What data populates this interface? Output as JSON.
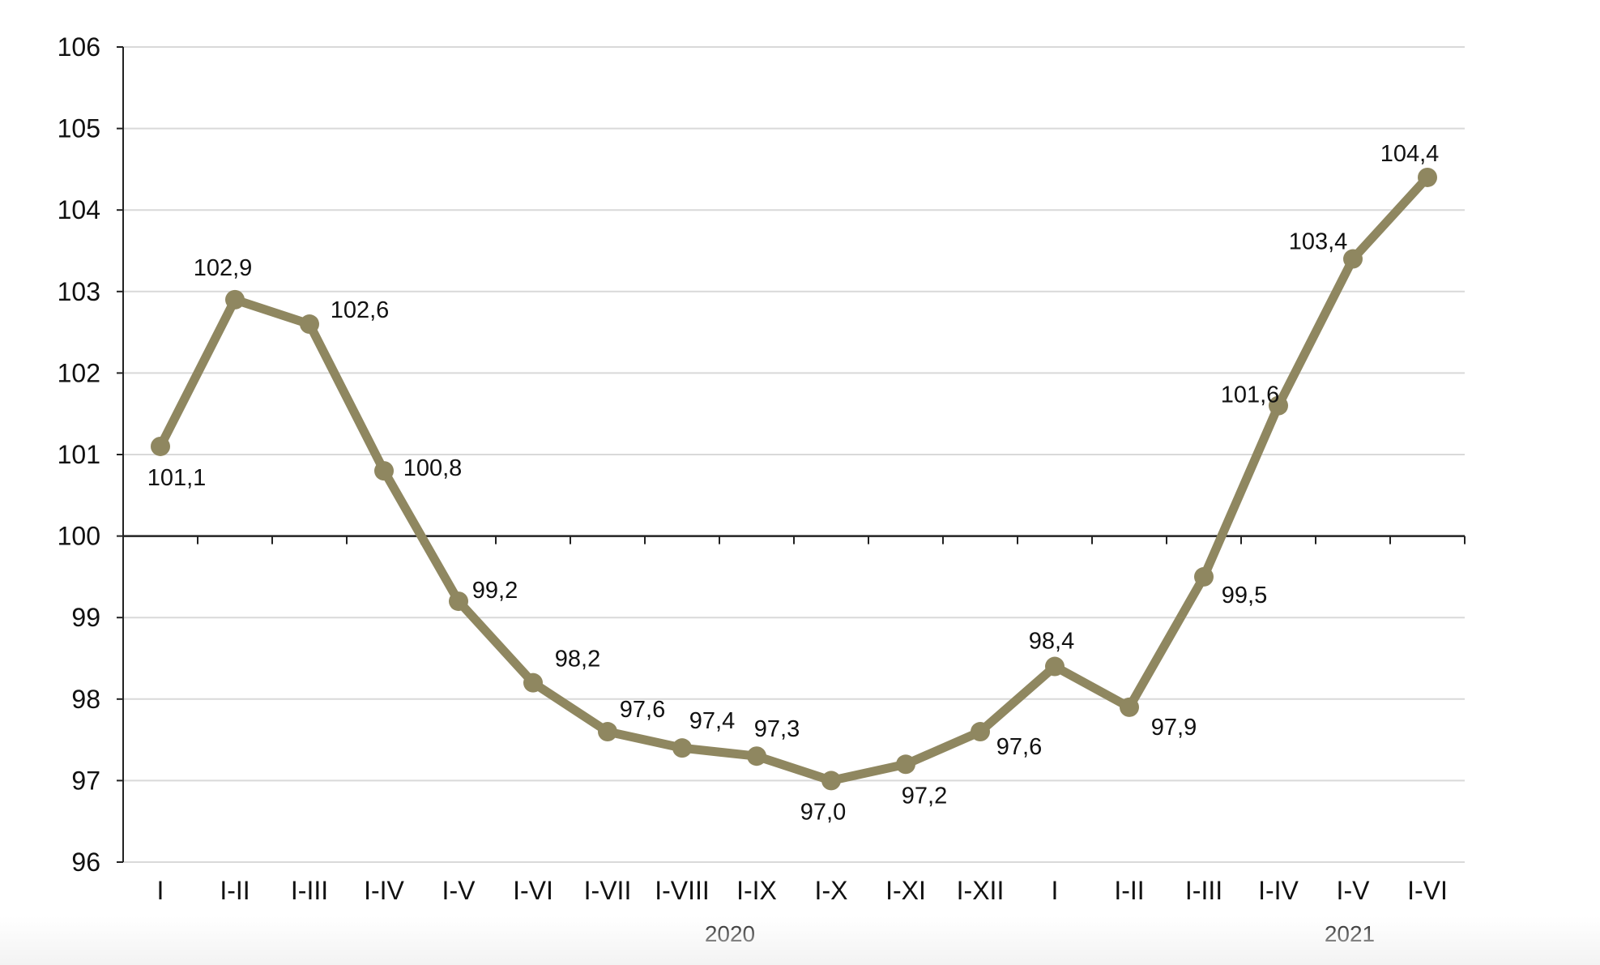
{
  "chart_data": {
    "type": "line",
    "categories": [
      "I",
      "I-II",
      "I-III",
      "I-IV",
      "I-V",
      "I-VI",
      "I-VII",
      "I-VIII",
      "I-IX",
      "I-X",
      "I-XI",
      "I-XII",
      "I",
      "I-II",
      "I-III",
      "I-IV",
      "I-V",
      "I-VI"
    ],
    "series": [
      {
        "values": [
          101.1,
          102.9,
          102.6,
          100.8,
          99.2,
          98.2,
          97.6,
          97.4,
          97.3,
          97.0,
          97.2,
          97.6,
          98.4,
          97.9,
          99.5,
          101.6,
          103.4,
          104.4
        ],
        "labels": [
          "101,1",
          "102,9",
          "102,6",
          "100,8",
          "99,2",
          "98,2",
          "97,6",
          "97,4",
          "97,3",
          "97,0",
          "97,2",
          "97,6",
          "98,4",
          "97,9",
          "99,5",
          "101,6",
          "103,4",
          "104,4"
        ]
      }
    ],
    "groups": [
      {
        "label": "2020",
        "categories_count": 12
      },
      {
        "label": "2021",
        "categories_count": 6
      }
    ],
    "ylim": [
      96,
      106
    ],
    "yticks": [
      {
        "value": 106,
        "label": "106"
      },
      {
        "value": 105,
        "label": "105"
      },
      {
        "value": 104,
        "label": "104"
      },
      {
        "value": 103,
        "label": "103"
      },
      {
        "value": 102,
        "label": "102"
      },
      {
        "value": 101,
        "label": "101"
      },
      {
        "value": 100,
        "label": "100"
      },
      {
        "value": 99,
        "label": "99"
      },
      {
        "value": 98,
        "label": "98"
      },
      {
        "value": 97,
        "label": "97"
      },
      {
        "value": 96,
        "label": "96"
      }
    ],
    "baseline": 100,
    "grid": true,
    "line_color": "#8f8760",
    "grid_color": "#d9d9d9",
    "axis_color": "#222222"
  }
}
